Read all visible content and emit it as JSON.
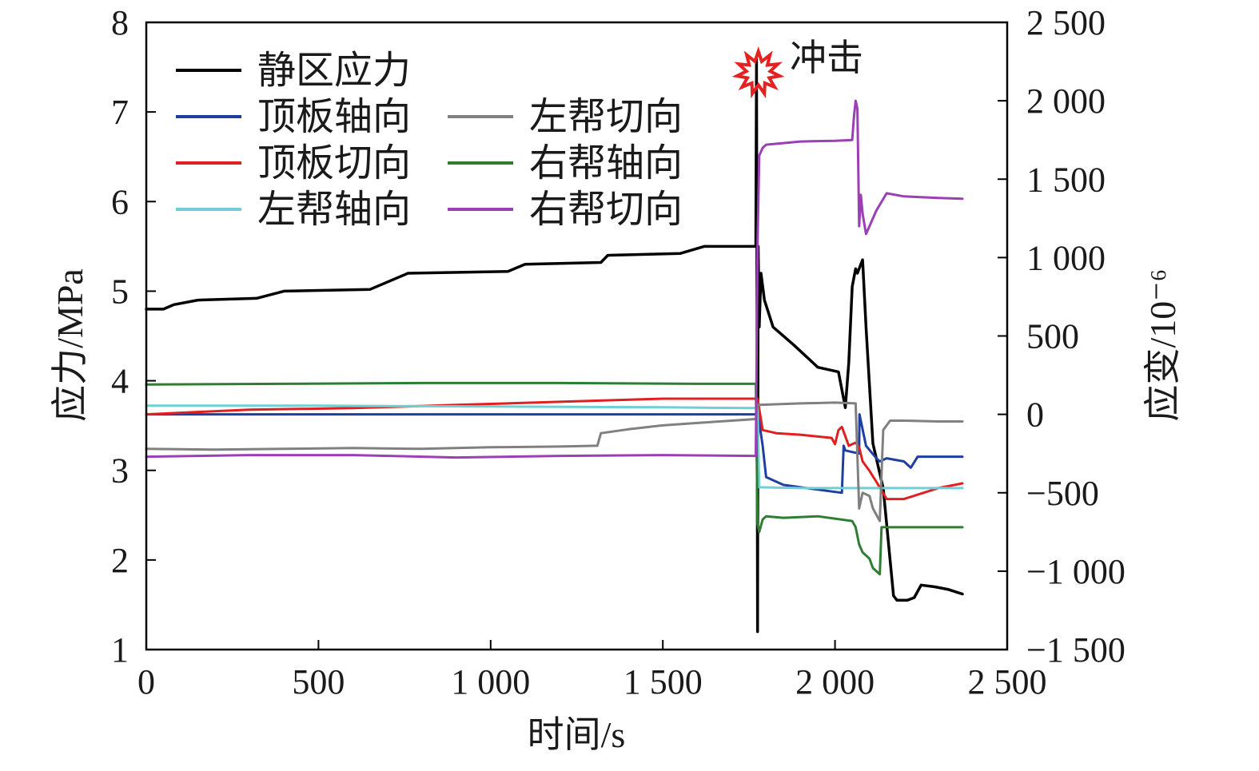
{
  "chart_data": {
    "type": "line",
    "xlabel": "时间/s",
    "ylabel_left": "应力/MPa",
    "ylabel_right": "应变/10⁻⁶",
    "xlim": [
      0,
      2500
    ],
    "ylim_left": [
      1,
      8
    ],
    "ylim_right": [
      -1500,
      2500
    ],
    "x_ticks": [
      0,
      500,
      1000,
      1500,
      2000,
      2500
    ],
    "x_tick_labels": [
      "0",
      "500",
      "1 000",
      "1 500",
      "2 000",
      "2 500"
    ],
    "y_left_ticks": [
      1,
      2,
      3,
      4,
      5,
      6,
      7,
      8
    ],
    "y_left_tick_labels": [
      "1",
      "2",
      "3",
      "4",
      "5",
      "6",
      "7",
      "8"
    ],
    "y_right_ticks": [
      -1500,
      -1000,
      -500,
      0,
      500,
      1000,
      1500,
      2000,
      2500
    ],
    "y_right_tick_labels": [
      "−1 500",
      "−1 000",
      "−500",
      "0",
      "500",
      "1 000",
      "1 500",
      "2 000",
      "2 500"
    ],
    "annotation": {
      "text": "冲击",
      "x": 1775,
      "y_left": 7.4
    },
    "grid": false,
    "legend_position": "top-left",
    "series": [
      {
        "name": "静区应力",
        "axis": "left",
        "color": "#000000",
        "x": [
          0,
          50,
          80,
          150,
          320,
          400,
          650,
          760,
          1050,
          1100,
          1320,
          1340,
          1550,
          1620,
          1770,
          1772,
          1775,
          1777,
          1780,
          1785,
          1795,
          1820,
          1880,
          1950,
          2010,
          2020,
          2030,
          2040,
          2050,
          2060,
          2065,
          2075,
          2080,
          2090,
          2110,
          2140,
          2160,
          2170,
          2180,
          2210,
          2230,
          2250,
          2290,
          2330,
          2370
        ],
        "y": [
          4.8,
          4.8,
          4.85,
          4.9,
          4.92,
          5.0,
          5.02,
          5.2,
          5.22,
          5.3,
          5.32,
          5.4,
          5.42,
          5.5,
          5.5,
          7.6,
          1.2,
          5.5,
          4.6,
          5.2,
          4.9,
          4.6,
          4.4,
          4.15,
          4.1,
          3.9,
          3.7,
          4.2,
          5.05,
          5.25,
          5.2,
          5.3,
          5.35,
          4.6,
          3.3,
          2.8,
          2.0,
          1.6,
          1.55,
          1.55,
          1.58,
          1.72,
          1.7,
          1.67,
          1.62
        ]
      },
      {
        "name": "顶板轴向",
        "axis": "right",
        "color": "#1e3fa0",
        "x": [
          0,
          400,
          800,
          1200,
          1600,
          1770,
          1775,
          1780,
          1790,
          1800,
          1850,
          1950,
          2020,
          2025,
          2030,
          2070,
          2071,
          2090,
          2120,
          2130,
          2150,
          2200,
          2220,
          2240,
          2300,
          2370
        ],
        "y": [
          0,
          0,
          0,
          0,
          0,
          0,
          0,
          -50,
          -200,
          -400,
          -450,
          -480,
          -500,
          -200,
          -230,
          -250,
          0,
          -200,
          -280,
          -300,
          -280,
          -300,
          -340,
          -270,
          -270,
          -270
        ]
      },
      {
        "name": "顶板切向",
        "axis": "right",
        "color": "#e02020",
        "x": [
          0,
          300,
          600,
          900,
          1200,
          1500,
          1770,
          1775,
          1790,
          1830,
          1900,
          1990,
          2000,
          2010,
          2020,
          2040,
          2060,
          2070,
          2080,
          2100,
          2120,
          2150,
          2200,
          2300,
          2370
        ],
        "y": [
          0,
          30,
          40,
          60,
          80,
          100,
          100,
          100,
          -100,
          -120,
          -130,
          -150,
          -190,
          -100,
          -80,
          -200,
          -180,
          -210,
          -300,
          -360,
          -430,
          -540,
          -540,
          -470,
          -440
        ]
      },
      {
        "name": "左帮轴向",
        "axis": "right",
        "color": "#6fcfd4",
        "x": [
          0,
          500,
          1000,
          1500,
          1770,
          1775,
          1780,
          1900,
          2000,
          2100,
          2200,
          2300,
          2370
        ],
        "y": [
          55,
          55,
          50,
          45,
          40,
          40,
          -465,
          -470,
          -470,
          -470,
          -470,
          -470,
          -470
        ]
      },
      {
        "name": "左帮切向",
        "axis": "right",
        "color": "#808080",
        "x": [
          0,
          200,
          400,
          600,
          800,
          1000,
          1200,
          1310,
          1320,
          1400,
          1500,
          1600,
          1700,
          1770,
          1775,
          1780,
          1900,
          2000,
          2060,
          2070,
          2080,
          2100,
          2110,
          2130,
          2140,
          2160,
          2200,
          2300,
          2370
        ],
        "y": [
          -220,
          -225,
          -220,
          -215,
          -220,
          -210,
          -205,
          -200,
          -120,
          -95,
          -70,
          -55,
          -40,
          -30,
          60,
          60,
          70,
          75,
          70,
          -600,
          -500,
          -520,
          -600,
          -680,
          -100,
          -40,
          -40,
          -45,
          -45
        ]
      },
      {
        "name": "右帮轴向",
        "axis": "right",
        "color": "#2e7d32",
        "x": [
          0,
          400,
          800,
          1200,
          1600,
          1770,
          1775,
          1780,
          1790,
          1800,
          1850,
          1950,
          2050,
          2060,
          2070,
          2080,
          2100,
          2110,
          2120,
          2130,
          2135,
          2150,
          2250,
          2370
        ],
        "y": [
          190,
          195,
          200,
          200,
          195,
          195,
          -700,
          -750,
          -670,
          -650,
          -660,
          -650,
          -680,
          -720,
          -830,
          -880,
          -920,
          -980,
          -1000,
          -1020,
          -720,
          -720,
          -720,
          -720
        ]
      },
      {
        "name": "右帮切向",
        "axis": "right",
        "color": "#9b3fb5",
        "x": [
          0,
          300,
          600,
          900,
          1200,
          1500,
          1770,
          1775,
          1780,
          1790,
          1800,
          1900,
          2000,
          2050,
          2055,
          2060,
          2065,
          2070,
          2075,
          2080,
          2090,
          2100,
          2120,
          2150,
          2200,
          2300,
          2370
        ],
        "y": [
          -270,
          -260,
          -260,
          -275,
          -265,
          -260,
          -265,
          1100,
          1650,
          1700,
          1720,
          1740,
          1745,
          1750,
          1900,
          2000,
          1950,
          1200,
          1400,
          1280,
          1150,
          1200,
          1300,
          1410,
          1390,
          1380,
          1375
        ]
      }
    ]
  }
}
